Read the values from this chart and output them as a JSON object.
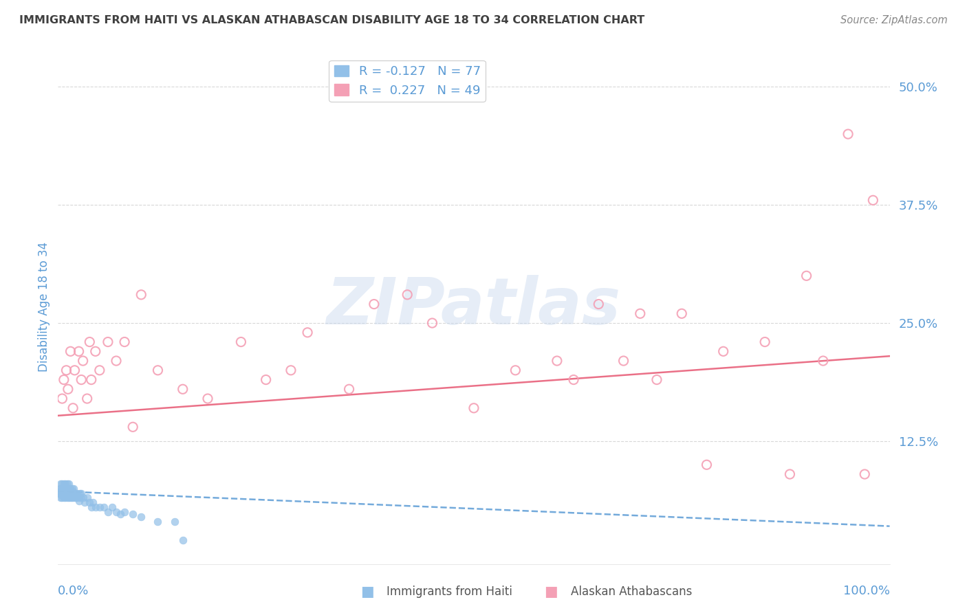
{
  "title": "IMMIGRANTS FROM HAITI VS ALASKAN ATHABASCAN DISABILITY AGE 18 TO 34 CORRELATION CHART",
  "source": "Source: ZipAtlas.com",
  "ylabel": "Disability Age 18 to 34",
  "ytick_labels": [
    "12.5%",
    "25.0%",
    "37.5%",
    "50.0%"
  ],
  "ytick_values": [
    0.125,
    0.25,
    0.375,
    0.5
  ],
  "xmin": 0.0,
  "xmax": 1.0,
  "ymin": -0.005,
  "ymax": 0.54,
  "legend_r1_text": "R = -0.127   N = 77",
  "legend_r2_text": "R =  0.227   N = 49",
  "color_blue": "#92c0e8",
  "color_pink": "#f4a0b5",
  "trend_blue_color": "#5b9bd5",
  "trend_pink_color": "#e8607a",
  "watermark": "ZIPatlas",
  "background_color": "#ffffff",
  "grid_color": "#d8d8d8",
  "title_color": "#404040",
  "axis_label_color": "#5b9bd5",
  "tick_label_color": "#5b9bd5",
  "source_color": "#888888",
  "haiti_x": [
    0.001,
    0.002,
    0.003,
    0.003,
    0.004,
    0.004,
    0.005,
    0.005,
    0.006,
    0.006,
    0.007,
    0.007,
    0.008,
    0.008,
    0.009,
    0.009,
    0.01,
    0.01,
    0.011,
    0.011,
    0.012,
    0.012,
    0.013,
    0.013,
    0.014,
    0.015,
    0.015,
    0.016,
    0.016,
    0.017,
    0.018,
    0.018,
    0.019,
    0.02,
    0.021,
    0.022,
    0.023,
    0.025,
    0.026,
    0.027,
    0.028,
    0.03,
    0.032,
    0.035,
    0.038,
    0.04,
    0.042,
    0.045,
    0.05,
    0.055,
    0.06,
    0.065,
    0.07,
    0.075,
    0.08,
    0.09,
    0.1,
    0.12,
    0.14,
    0.002,
    0.003,
    0.004,
    0.005,
    0.006,
    0.007,
    0.008,
    0.009,
    0.01,
    0.011,
    0.012,
    0.013,
    0.015,
    0.017,
    0.019,
    0.022,
    0.025,
    0.15
  ],
  "haiti_y": [
    0.07,
    0.075,
    0.065,
    0.08,
    0.07,
    0.075,
    0.065,
    0.08,
    0.07,
    0.075,
    0.065,
    0.08,
    0.07,
    0.075,
    0.065,
    0.08,
    0.07,
    0.075,
    0.065,
    0.08,
    0.07,
    0.075,
    0.065,
    0.08,
    0.07,
    0.065,
    0.075,
    0.065,
    0.07,
    0.075,
    0.065,
    0.07,
    0.075,
    0.065,
    0.07,
    0.065,
    0.07,
    0.065,
    0.07,
    0.065,
    0.07,
    0.065,
    0.06,
    0.065,
    0.06,
    0.055,
    0.06,
    0.055,
    0.055,
    0.055,
    0.05,
    0.055,
    0.05,
    0.048,
    0.05,
    0.048,
    0.045,
    0.04,
    0.04,
    0.07,
    0.072,
    0.068,
    0.072,
    0.068,
    0.072,
    0.068,
    0.072,
    0.068,
    0.072,
    0.068,
    0.072,
    0.068,
    0.072,
    0.068,
    0.065,
    0.062,
    0.02
  ],
  "athabascan_x": [
    0.005,
    0.007,
    0.01,
    0.012,
    0.015,
    0.018,
    0.02,
    0.025,
    0.028,
    0.03,
    0.035,
    0.038,
    0.04,
    0.045,
    0.05,
    0.06,
    0.07,
    0.08,
    0.09,
    0.1,
    0.12,
    0.15,
    0.18,
    0.22,
    0.25,
    0.28,
    0.3,
    0.35,
    0.38,
    0.42,
    0.45,
    0.5,
    0.55,
    0.6,
    0.62,
    0.65,
    0.68,
    0.7,
    0.72,
    0.75,
    0.78,
    0.8,
    0.85,
    0.88,
    0.9,
    0.92,
    0.95,
    0.97,
    0.98
  ],
  "athabascan_y": [
    0.17,
    0.19,
    0.2,
    0.18,
    0.22,
    0.16,
    0.2,
    0.22,
    0.19,
    0.21,
    0.17,
    0.23,
    0.19,
    0.22,
    0.2,
    0.23,
    0.21,
    0.23,
    0.14,
    0.28,
    0.2,
    0.18,
    0.17,
    0.23,
    0.19,
    0.2,
    0.24,
    0.18,
    0.27,
    0.28,
    0.25,
    0.16,
    0.2,
    0.21,
    0.19,
    0.27,
    0.21,
    0.26,
    0.19,
    0.26,
    0.1,
    0.22,
    0.23,
    0.09,
    0.3,
    0.21,
    0.45,
    0.09,
    0.38
  ],
  "haiti_trend_x": [
    0.0,
    1.0
  ],
  "haiti_trend_y": [
    0.072,
    0.035
  ],
  "athabascan_trend_x": [
    0.0,
    1.0
  ],
  "athabascan_trend_y": [
    0.152,
    0.215
  ]
}
